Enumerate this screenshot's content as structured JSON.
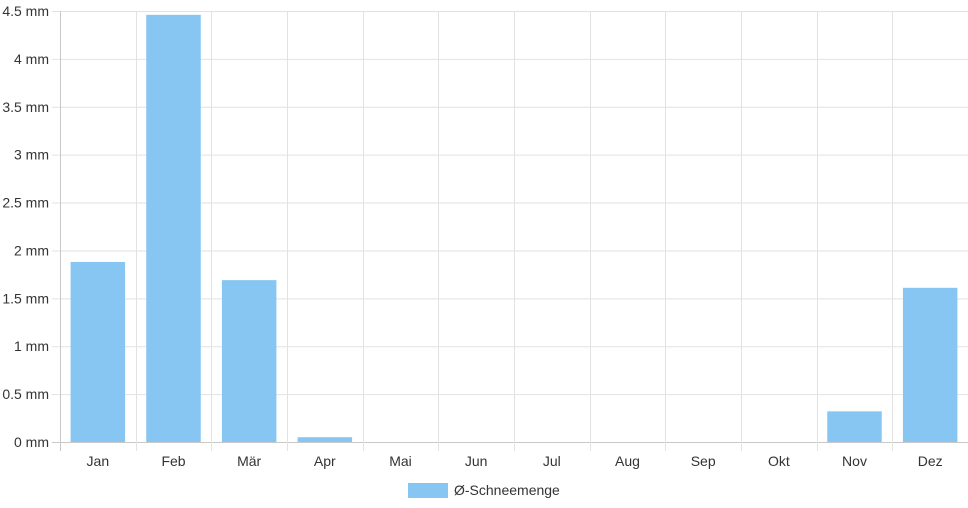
{
  "chart_data": {
    "type": "bar",
    "categories": [
      "Jan",
      "Feb",
      "Mär",
      "Apr",
      "Mai",
      "Jun",
      "Jul",
      "Aug",
      "Sep",
      "Okt",
      "Nov",
      "Dez"
    ],
    "series": [
      {
        "name": "Ø-Schneemenge",
        "values": [
          1.88,
          4.46,
          1.69,
          0.05,
          0,
          0,
          0,
          0,
          0,
          0,
          0.32,
          1.61
        ],
        "color": "#87c6f2"
      }
    ],
    "y_tick_labels": [
      "0 mm",
      "0.5 mm",
      "1 mm",
      "1.5 mm",
      "2 mm",
      "2.5 mm",
      "3 mm",
      "3.5 mm",
      "4 mm",
      "4.5 mm"
    ],
    "ylim": [
      0,
      4.5
    ],
    "grid": true,
    "legend_position": "bottom"
  }
}
